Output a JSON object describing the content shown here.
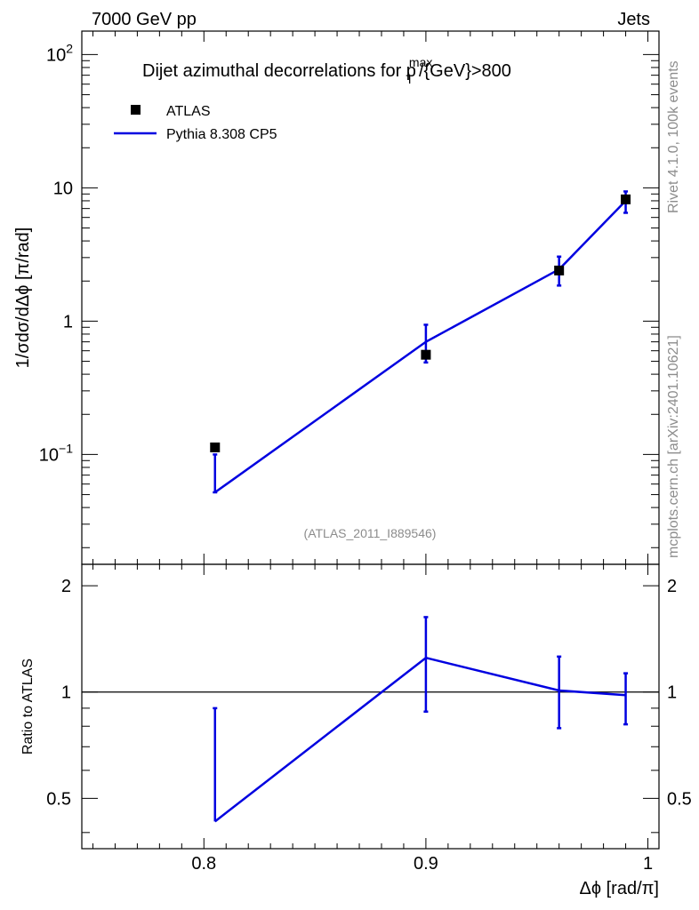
{
  "header": {
    "left": "7000 GeV pp",
    "right": "Jets"
  },
  "side_labels": {
    "rivet": "Rivet 4.1.0,  100k events",
    "mcplots": "mcplots.cern.ch [arXiv:2401.10621]"
  },
  "colors": {
    "mc": "#0000e0",
    "data": "#000000",
    "watermark": "#8c8c8c"
  },
  "chart_data": [
    {
      "type": "scatter",
      "title_main": "Dijet azimuthal decorrelations for p",
      "title_sub": "T",
      "title_sup": "max",
      "title_tail": "/{GeV}>800",
      "ylabel": "1/σdσ/dΔϕ [π/rad]",
      "yscale": "log",
      "ylim": [
        0.015,
        150
      ],
      "xlim": [
        0.745,
        1.005
      ],
      "yticks": [
        {
          "value": 100,
          "base": "10",
          "exp": "2"
        },
        {
          "value": 10,
          "base": "10",
          "exp": ""
        },
        {
          "value": 1,
          "base": "1",
          "exp": ""
        },
        {
          "value": 0.1,
          "base": "10",
          "exp": "−1"
        }
      ],
      "legend": [
        {
          "label": "ATLAS",
          "kind": "marker"
        },
        {
          "label": "Pythia 8.308 CP5",
          "kind": "line"
        }
      ],
      "legend_placement": "top-left",
      "watermark": "(ATLAS_2011_I889546)",
      "series": [
        {
          "name": "ATLAS",
          "x": [
            0.805,
            0.9,
            0.96,
            0.99
          ],
          "y": [
            0.113,
            0.56,
            2.4,
            8.2
          ]
        },
        {
          "name": "Pythia 8.308 CP5",
          "x": [
            0.805,
            0.9,
            0.96,
            0.99
          ],
          "y": [
            0.052,
            0.7,
            2.45,
            8.0
          ],
          "err_low": [
            0.0,
            0.21,
            0.6,
            1.5
          ],
          "err_high": [
            0.048,
            0.24,
            0.6,
            1.4
          ]
        }
      ]
    },
    {
      "type": "line",
      "ylabel": "Ratio to ATLAS",
      "ylim": [
        0.36,
        2.3
      ],
      "xlim": [
        0.745,
        1.005
      ],
      "yticks": [
        0.5,
        1,
        2
      ],
      "ytick_labels": [
        "0.5",
        "1",
        "2"
      ],
      "xticks": [
        0.8,
        0.9,
        1.0
      ],
      "xtick_labels": [
        "0.8",
        "0.9",
        "1"
      ],
      "xlabel": "Δϕ [rad/π]",
      "reference_line": 1,
      "series": [
        {
          "name": "Pythia 8.308 CP5",
          "x": [
            0.805,
            0.9,
            0.96,
            0.99
          ],
          "y": [
            0.43,
            1.25,
            1.01,
            0.98
          ],
          "err_low": [
            0.0,
            0.37,
            0.22,
            0.17
          ],
          "err_high": [
            0.47,
            0.38,
            0.25,
            0.15
          ]
        }
      ]
    }
  ]
}
